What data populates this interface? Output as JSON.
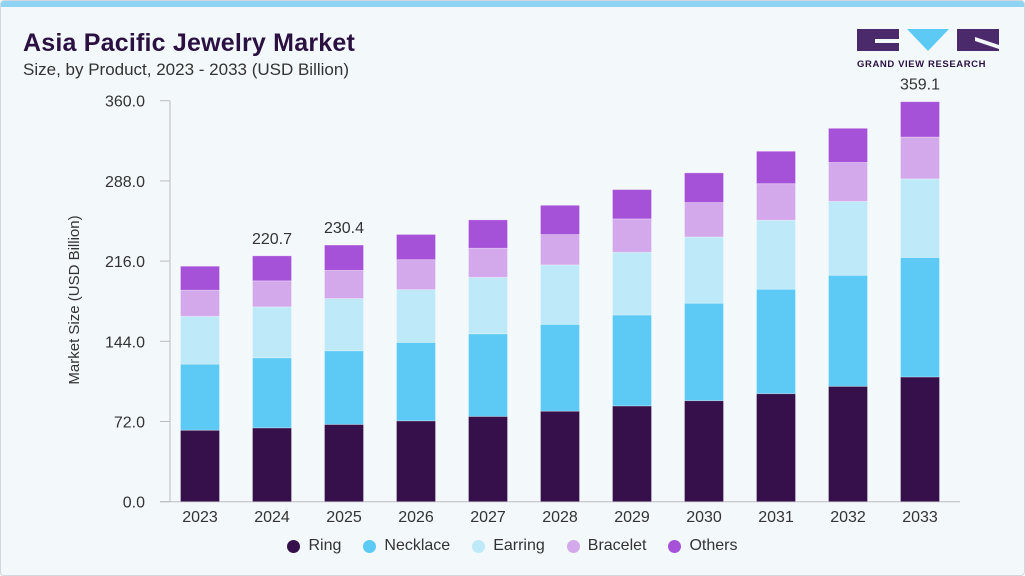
{
  "header": {
    "title": "Asia Pacific Jewelry Market",
    "subtitle": "Size, by Product, 2023 - 2033 (USD Billion)"
  },
  "logo": {
    "text": "GRAND VIEW RESEARCH"
  },
  "chart_data": {
    "type": "bar",
    "stacked": true,
    "title": "Asia Pacific Jewelry Market",
    "subtitle": "Size, by Product, 2023 - 2033 (USD Billion)",
    "xlabel": "",
    "ylabel": "Market Size (USD Billion)",
    "ylim": [
      0,
      360
    ],
    "yticks": [
      "0.0",
      "72.0",
      "144.0",
      "216.0",
      "288.0",
      "360.0"
    ],
    "grid": false,
    "legend_position": "bottom",
    "categories": [
      "2023",
      "2024",
      "2025",
      "2026",
      "2027",
      "2028",
      "2029",
      "2030",
      "2031",
      "2032",
      "2033"
    ],
    "series": [
      {
        "name": "Ring",
        "color": "#36104a",
        "values": [
          64.2,
          66.3,
          69.4,
          72.6,
          76.6,
          81.3,
          86.0,
          90.7,
          97.0,
          103.6,
          112.0
        ]
      },
      {
        "name": "Necklace",
        "color": "#5ccaf5",
        "values": [
          59.3,
          62.9,
          66.1,
          70.4,
          74.1,
          77.9,
          81.6,
          87.5,
          93.8,
          99.7,
          107.2
        ]
      },
      {
        "name": "Earring",
        "color": "#bde9f9",
        "values": [
          42.9,
          45.7,
          46.9,
          47.4,
          50.7,
          53.4,
          56.3,
          59.5,
          61.9,
          66.3,
          70.6
        ]
      },
      {
        "name": "Bracelet",
        "color": "#d3a9ec",
        "values": [
          23.5,
          23.4,
          25.3,
          26.9,
          26.2,
          27.2,
          30.0,
          30.9,
          32.8,
          35.0,
          37.6
        ]
      },
      {
        "name": "Others",
        "color": "#a552d8",
        "values": [
          21.5,
          22.4,
          22.7,
          22.6,
          25.4,
          26.3,
          26.3,
          26.6,
          29.1,
          30.6,
          31.7
        ]
      }
    ],
    "data_labels": {
      "2024": "220.7",
      "2025": "230.4",
      "2033": "359.1"
    }
  }
}
